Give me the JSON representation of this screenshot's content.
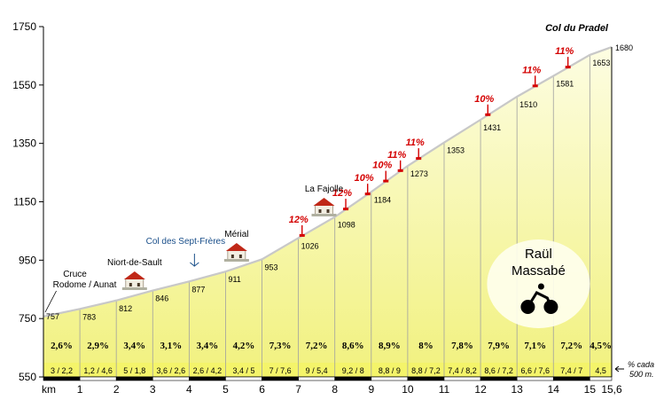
{
  "chart_data": {
    "type": "area",
    "title": "Col du Pradel",
    "xlabel": "km",
    "ylim": [
      550,
      1750
    ],
    "xlim": [
      0,
      15.6
    ],
    "y_ticks": [
      550,
      750,
      950,
      1150,
      1350,
      1550,
      1750
    ],
    "x_ticks": [
      "1",
      "2",
      "3",
      "4",
      "5",
      "6",
      "7",
      "8",
      "9",
      "10",
      "11",
      "12",
      "13",
      "14",
      "15",
      "15,6"
    ],
    "x_tick_values": [
      1,
      2,
      3,
      4,
      5,
      6,
      7,
      8,
      9,
      10,
      11,
      12,
      13,
      14,
      15,
      15.6
    ],
    "profile": {
      "x": [
        0,
        1,
        2,
        3,
        4,
        5,
        6,
        7,
        8,
        9,
        10,
        11,
        12,
        13,
        14,
        15,
        15.6
      ],
      "y": [
        757,
        783,
        812,
        846,
        877,
        911,
        953,
        1026,
        1098,
        1184,
        1273,
        1353,
        1431,
        1510,
        1581,
        1653,
        1680
      ]
    },
    "elevation_labels": [
      "757",
      "783",
      "812",
      "846",
      "877",
      "911",
      "953",
      "1026",
      "1098",
      "1184",
      "1273",
      "1353",
      "1431",
      "1510",
      "1581",
      "1653",
      "1680"
    ],
    "segment_gradients": [
      "2,6%",
      "2,9%",
      "3,4%",
      "3,1%",
      "3,4%",
      "4,2%",
      "7,3%",
      "7,2%",
      "8,6%",
      "8,9%",
      "8%",
      "7,8%",
      "7,9%",
      "7,1%",
      "7,2%",
      "4,5%"
    ],
    "split_gradients": [
      "3 / 2,2",
      "1,2 / 4,6",
      "5 / 1,8",
      "3,6 / 2,6",
      "2,6 / 4,2",
      "3,4 / 5",
      "7 / 7,6",
      "9 / 5,4",
      "9,2 / 8",
      "8,8 / 9",
      "8,8 / 7,2",
      "7,4 / 8,2",
      "8,6 / 7,2",
      "6,6 / 7,6",
      "7,4 / 7",
      "4,5"
    ],
    "split_note": [
      "% cada",
      "500 m."
    ],
    "steep_markers": [
      {
        "x": 7.1,
        "label": "12%"
      },
      {
        "x": 8.3,
        "label": "12%"
      },
      {
        "x": 8.9,
        "label": "10%"
      },
      {
        "x": 9.4,
        "label": "10%"
      },
      {
        "x": 9.8,
        "label": "11%"
      },
      {
        "x": 10.3,
        "label": "11%"
      },
      {
        "x": 12.2,
        "label": "10%"
      },
      {
        "x": 13.5,
        "label": "11%"
      },
      {
        "x": 14.4,
        "label": "11%"
      }
    ],
    "places": [
      {
        "x": 0.5,
        "lines": [
          "Cruce",
          "Rodome / Aunat"
        ],
        "icon": false
      },
      {
        "x": 2.6,
        "lines": [
          "Niort-de-Sault"
        ],
        "icon": true
      },
      {
        "x": 4.0,
        "lines": [
          "Col des Sept-Frères"
        ],
        "icon": false,
        "color": "#1a4f8a"
      },
      {
        "x": 5.4,
        "lines": [
          "Mérial"
        ],
        "icon": true
      },
      {
        "x": 7.8,
        "lines": [
          "La Fajolle"
        ],
        "icon": true
      }
    ],
    "rider": [
      "Raül",
      "Massabé"
    ],
    "colors": {
      "fill_top": "#fbfbd0",
      "fill_bottom": "#f0f07a",
      "profile_line": "#c8c8c8",
      "steep": "#d40000",
      "base_band": "#f4f46a"
    }
  }
}
